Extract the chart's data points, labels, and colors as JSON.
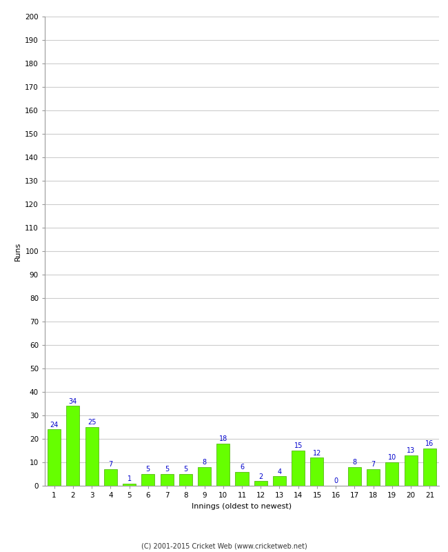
{
  "xlabel": "Innings (oldest to newest)",
  "ylabel": "Runs",
  "categories": [
    "1",
    "2",
    "3",
    "4",
    "5",
    "6",
    "7",
    "8",
    "9",
    "10",
    "11",
    "12",
    "13",
    "14",
    "15",
    "16",
    "17",
    "18",
    "19",
    "20",
    "21"
  ],
  "values": [
    24,
    34,
    25,
    7,
    1,
    5,
    5,
    5,
    8,
    18,
    6,
    2,
    4,
    15,
    12,
    0,
    8,
    7,
    10,
    13,
    16
  ],
  "bar_color": "#66ff00",
  "bar_edge_color": "#44aa00",
  "label_color": "#0000cc",
  "ylim": [
    0,
    200
  ],
  "yticks": [
    0,
    10,
    20,
    30,
    40,
    50,
    60,
    70,
    80,
    90,
    100,
    110,
    120,
    130,
    140,
    150,
    160,
    170,
    180,
    190,
    200
  ],
  "background_color": "#ffffff",
  "grid_color": "#cccccc",
  "footer": "(C) 2001-2015 Cricket Web (www.cricketweb.net)",
  "label_fontsize": 7,
  "axis_label_fontsize": 8,
  "tick_fontsize": 7.5,
  "footer_fontsize": 7
}
